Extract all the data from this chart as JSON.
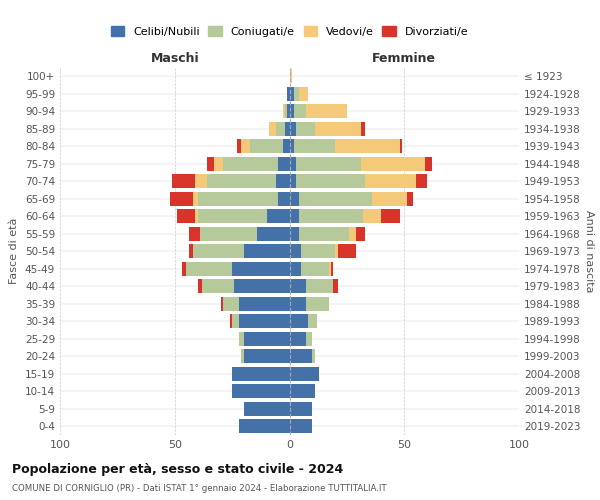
{
  "age_groups": [
    "0-4",
    "5-9",
    "10-14",
    "15-19",
    "20-24",
    "25-29",
    "30-34",
    "35-39",
    "40-44",
    "45-49",
    "50-54",
    "55-59",
    "60-64",
    "65-69",
    "70-74",
    "75-79",
    "80-84",
    "85-89",
    "90-94",
    "95-99",
    "100+"
  ],
  "birth_years": [
    "2019-2023",
    "2014-2018",
    "2009-2013",
    "2004-2008",
    "1999-2003",
    "1994-1998",
    "1989-1993",
    "1984-1988",
    "1979-1983",
    "1974-1978",
    "1969-1973",
    "1964-1968",
    "1959-1963",
    "1954-1958",
    "1949-1953",
    "1944-1948",
    "1939-1943",
    "1934-1938",
    "1929-1933",
    "1924-1928",
    "≤ 1923"
  ],
  "males": {
    "celibe": [
      22,
      20,
      25,
      25,
      20,
      20,
      22,
      22,
      24,
      25,
      20,
      14,
      10,
      5,
      6,
      5,
      3,
      2,
      1,
      1,
      0
    ],
    "coniugato": [
      0,
      0,
      0,
      0,
      1,
      2,
      3,
      7,
      14,
      20,
      22,
      25,
      30,
      35,
      30,
      24,
      14,
      4,
      1,
      0,
      0
    ],
    "vedovo": [
      0,
      0,
      0,
      0,
      0,
      0,
      0,
      0,
      0,
      0,
      0,
      0,
      1,
      2,
      5,
      4,
      4,
      3,
      1,
      0,
      0
    ],
    "divorziato": [
      0,
      0,
      0,
      0,
      0,
      0,
      1,
      1,
      2,
      2,
      2,
      5,
      8,
      10,
      10,
      3,
      2,
      0,
      0,
      0,
      0
    ]
  },
  "females": {
    "nubile": [
      10,
      10,
      11,
      13,
      10,
      7,
      8,
      7,
      7,
      5,
      5,
      4,
      4,
      4,
      3,
      3,
      2,
      3,
      2,
      2,
      0
    ],
    "coniugata": [
      0,
      0,
      0,
      0,
      1,
      3,
      4,
      10,
      12,
      12,
      15,
      22,
      28,
      32,
      30,
      28,
      18,
      8,
      5,
      2,
      0
    ],
    "vedova": [
      0,
      0,
      0,
      0,
      0,
      0,
      0,
      0,
      0,
      1,
      1,
      3,
      8,
      15,
      22,
      28,
      28,
      20,
      18,
      4,
      1
    ],
    "divorziata": [
      0,
      0,
      0,
      0,
      0,
      0,
      0,
      0,
      2,
      1,
      8,
      4,
      8,
      3,
      5,
      3,
      1,
      2,
      0,
      0,
      0
    ]
  },
  "colors": {
    "celibe": "#4472a8",
    "coniugato": "#b5c99a",
    "vedovo": "#f5c97a",
    "divorziato": "#d9342b"
  },
  "title": "Popolazione per età, sesso e stato civile - 2024",
  "subtitle": "COMUNE DI CORNIGLIO (PR) - Dati ISTAT 1° gennaio 2024 - Elaborazione TUTTITALIA.IT",
  "xlabel_maschi": "Maschi",
  "xlabel_femmine": "Femmine",
  "ylabel_left": "Fasce di età",
  "ylabel_right": "Anni di nascita",
  "xlim": 100,
  "legend_labels": [
    "Celibi/Nubili",
    "Coniugati/e",
    "Vedovi/e",
    "Divorziati/e"
  ]
}
